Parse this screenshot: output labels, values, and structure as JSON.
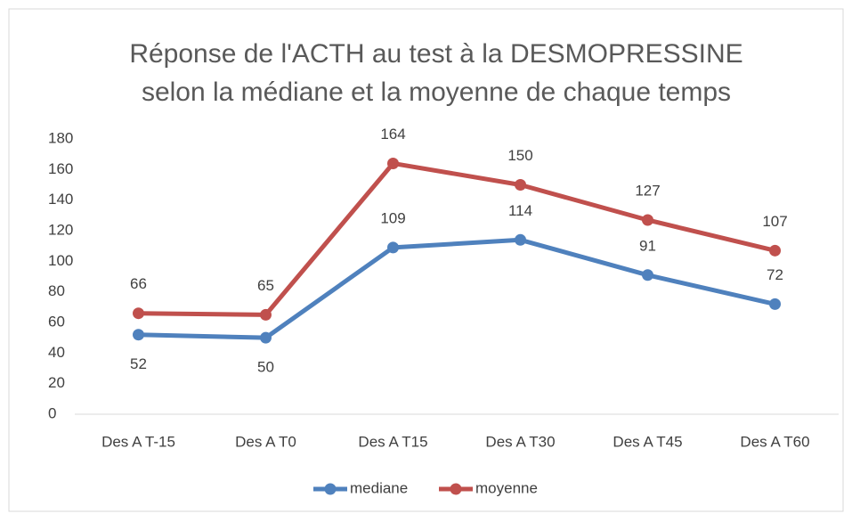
{
  "chart_data": {
    "type": "line",
    "title": [
      "Réponse de l'ACTH au test à la DESMOPRESSINE",
      "selon la médiane et la moyenne de chaque temps"
    ],
    "categories": [
      "Des A T-15",
      "Des A T0",
      "Des A T15",
      "Des A T30",
      "Des A T45",
      "Des A T60"
    ],
    "series": [
      {
        "name": "mediane",
        "color": "#4f81bd",
        "values": [
          52,
          50,
          109,
          114,
          91,
          72
        ]
      },
      {
        "name": "moyenne",
        "color": "#c0504d",
        "values": [
          66,
          65,
          164,
          150,
          127,
          107
        ]
      }
    ],
    "ylim": [
      0,
      180
    ],
    "yticks": [
      0,
      20,
      40,
      60,
      80,
      100,
      120,
      140,
      160,
      180
    ],
    "grid": false,
    "legend": "bottom"
  }
}
